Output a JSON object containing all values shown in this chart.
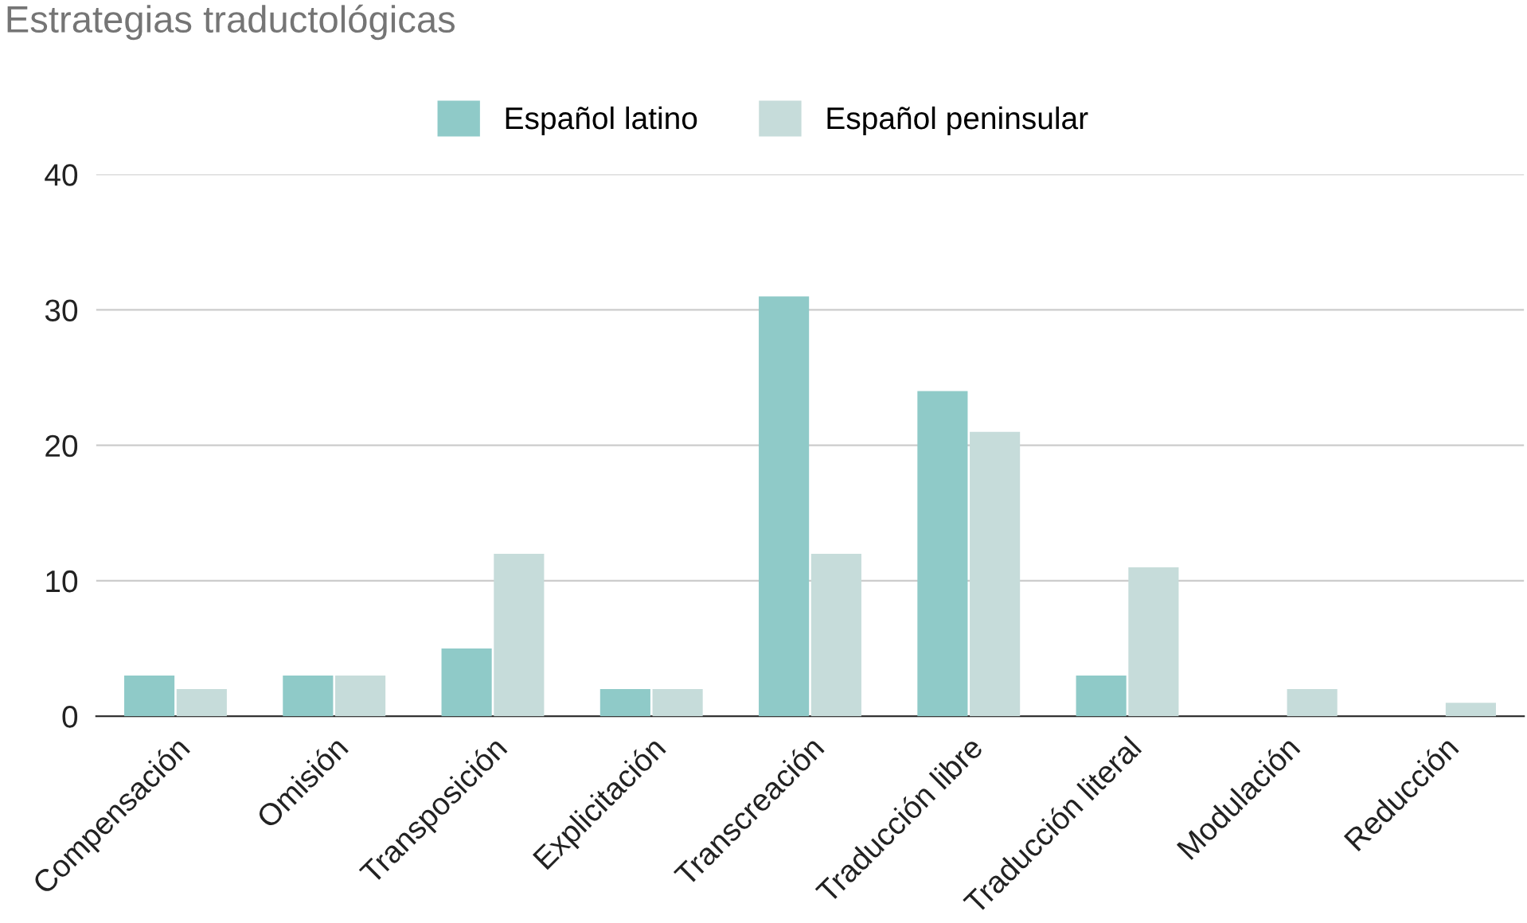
{
  "chart_data": {
    "type": "bar",
    "title": "Estrategias traductológicas",
    "categories": [
      "Compensación",
      "Omisión",
      "Transposición",
      "Explicitación",
      "Transcreación",
      "Traducción libre",
      "Traducción literal",
      "Modulación",
      "Reducción"
    ],
    "series": [
      {
        "name": "Español latino",
        "color": "#8fcac8",
        "values": [
          3,
          3,
          5,
          2,
          31,
          24,
          3,
          0,
          0
        ]
      },
      {
        "name": "Español peninsular",
        "color": "#c6dcda",
        "values": [
          2,
          3,
          12,
          2,
          12,
          21,
          11,
          2,
          1
        ]
      }
    ],
    "ylim": [
      0,
      40
    ],
    "yticks": [
      0,
      10,
      20,
      30,
      40
    ],
    "grid": "y",
    "legend": "top"
  }
}
